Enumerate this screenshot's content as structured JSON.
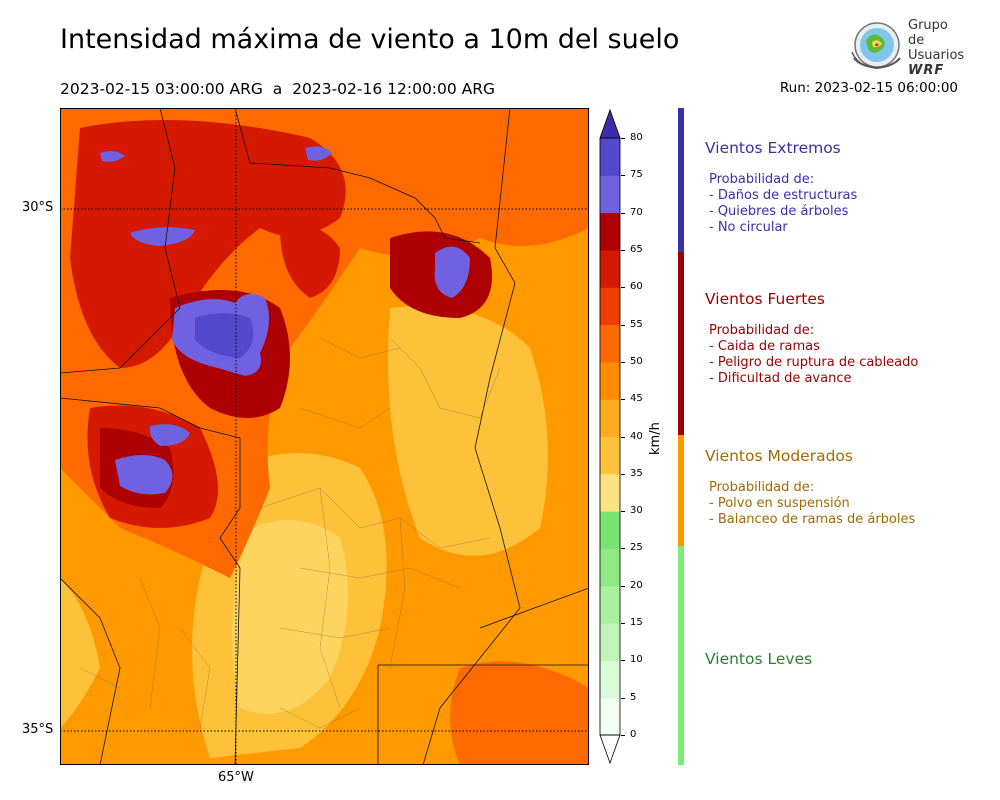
{
  "header": {
    "title": "Intensidad máxima de viento a 10m del suelo",
    "subtitle": "2023-02-15 03:00:00 ARG  a  2023-02-16 12:00:00 ARG",
    "run": "Run: 2023-02-15 06:00:00"
  },
  "logo": {
    "line1": "Grupo de",
    "line2": "Usuarios",
    "line3": "WRF"
  },
  "map": {
    "lat_labels": [
      "30°S",
      "35°S"
    ],
    "lon_labels": [
      "65°W"
    ]
  },
  "colorbar": {
    "unit": "km/h",
    "ticks": [
      "0",
      "5",
      "10",
      "15",
      "20",
      "25",
      "30",
      "35",
      "40",
      "45",
      "50",
      "55",
      "60",
      "65",
      "70",
      "75",
      "80"
    ],
    "colors": [
      "#f2fff2",
      "#dafada",
      "#c0f4b8",
      "#a9f0a0",
      "#8fea85",
      "#78e471",
      "#fde380",
      "#fec13a",
      "#feab1e",
      "#ff8c00",
      "#ff6a00",
      "#f03c00",
      "#d51800",
      "#ad0000",
      "#6f61e0",
      "#5448cc",
      "#3c2eaa"
    ],
    "low_extend": "#ffffff",
    "high_extend": "#3c2eaa"
  },
  "legend": {
    "extremos": {
      "title": "Vientos Extremos",
      "color": "#3a2fa8",
      "items": [
        "Probabilidad de:",
        "- Daños de estructuras",
        "- Quiebres de árboles",
        "- No circular"
      ]
    },
    "fuertes": {
      "title": "Vientos Fuertes",
      "color": "#9b0000",
      "items": [
        "Probabilidad de:",
        "- Caida de ramas",
        "- Peligro de ruptura de cableado",
        "- Dificultad de avance"
      ]
    },
    "moderados": {
      "title": "Vientos Moderados",
      "color": "#a36a00",
      "bar_color": "#ff9900",
      "items": [
        "Probabilidad de:",
        "- Polvo en suspensión",
        "- Balanceo de ramas de árboles"
      ]
    },
    "leves": {
      "title": "Vientos Leves",
      "color": "#2e7d32",
      "bar_color": "#77ee77"
    }
  }
}
